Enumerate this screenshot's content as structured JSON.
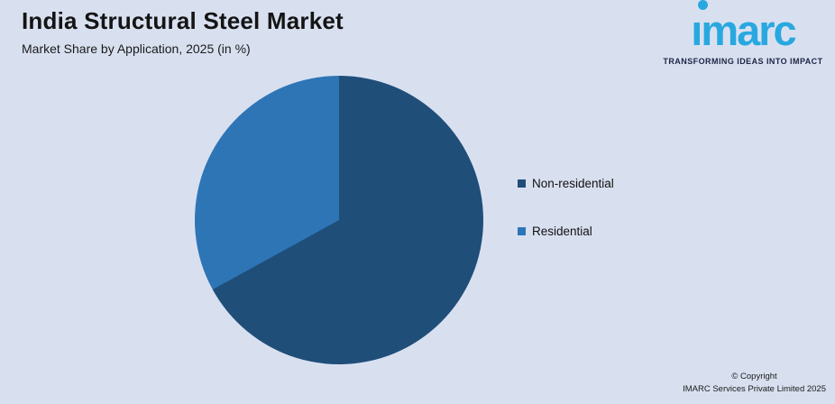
{
  "header": {
    "title": "India Structural Steel Market",
    "subtitle": "Market Share by Application, 2025 (in %)"
  },
  "logo": {
    "brand": "imarc",
    "tagline": "TRANSFORMING IDEAS INTO IMPACT",
    "brand_color": "#29a8e0",
    "tagline_color": "#1d2545"
  },
  "chart_data": {
    "type": "pie",
    "title": "India Structural Steel Market",
    "subtitle": "Market Share by Application, 2025 (in %)",
    "slices": [
      {
        "label": "Non-residential",
        "value": 67,
        "color": "#1f4e79"
      },
      {
        "label": "Residential",
        "value": 33,
        "color": "#2e75b6"
      }
    ],
    "start_angle_deg": 0,
    "direction": "clockwise",
    "legend_position": "right",
    "data_labels": false,
    "background": "#d8e0f0"
  },
  "legend": {
    "items": [
      {
        "label": "Non-residential",
        "color": "#1f4e79"
      },
      {
        "label": "Residential",
        "color": "#2e75b6"
      }
    ]
  },
  "footer": {
    "line1": "© Copyright",
    "line2": "IMARC Services Private Limited 2025"
  }
}
